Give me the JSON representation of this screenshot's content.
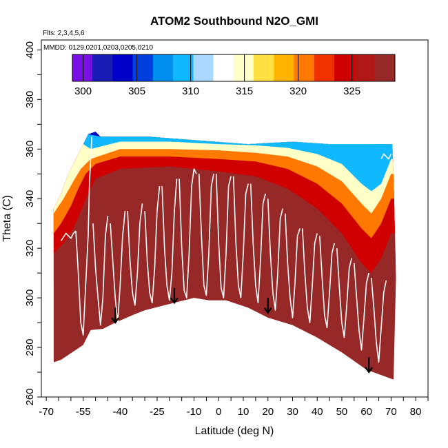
{
  "chart_data": {
    "type": "heatmap",
    "title": "ATOM2 Southbound N2O_GMI",
    "notes": [
      "Flts: 2,3,4,5,6",
      "MMDD: 0129,0201,0203,0205,0210"
    ],
    "xlabel": "Latitude (deg N)",
    "ylabel": "Theta (C)",
    "xlim": [
      -72,
      85
    ],
    "ylim": [
      260,
      404
    ],
    "x_ticks": [
      -70,
      -55,
      -40,
      -25,
      -10,
      0,
      10,
      20,
      30,
      40,
      50,
      60,
      70,
      80
    ],
    "y_ticks": [
      260,
      280,
      300,
      320,
      340,
      360,
      380,
      400
    ],
    "colorbar": {
      "min": 299,
      "max": 329,
      "ticks": [
        300,
        305,
        310,
        315,
        320,
        325
      ],
      "colors": [
        "#7a10e6",
        "#1a1ab4",
        "#0000c8",
        "#0040e0",
        "#0090f0",
        "#10b8ff",
        "#a8d8ff",
        "#ffffff",
        "#ffffc8",
        "#ffe040",
        "#ffb400",
        "#ff7800",
        "#f03200",
        "#d00000",
        "#b01818",
        "#962828"
      ]
    },
    "domain_bounds": [
      [
        -67,
        274
      ],
      [
        -64,
        275
      ],
      [
        -55,
        281
      ],
      [
        -52,
        287
      ],
      [
        -47,
        287.5
      ],
      [
        -42,
        290
      ],
      [
        -35,
        293
      ],
      [
        -30,
        295
      ],
      [
        -22,
        297
      ],
      [
        -10,
        300
      ],
      [
        -4,
        299
      ],
      [
        3,
        299
      ],
      [
        12,
        296
      ],
      [
        20,
        292
      ],
      [
        30,
        289
      ],
      [
        40,
        284
      ],
      [
        50,
        278
      ],
      [
        60,
        271
      ],
      [
        71,
        267
      ],
      [
        72,
        308
      ],
      [
        71,
        350
      ],
      [
        70.5,
        362
      ],
      [
        63,
        362
      ],
      [
        57,
        362
      ],
      [
        45,
        362
      ],
      [
        30,
        363
      ],
      [
        12,
        362
      ],
      [
        -15,
        364
      ],
      [
        -28,
        365
      ],
      [
        -48,
        365
      ],
      [
        -50,
        367
      ],
      [
        -53,
        366
      ],
      [
        -57,
        358
      ],
      [
        -61,
        350
      ],
      [
        -64,
        342
      ],
      [
        -67,
        336
      ]
    ],
    "contours": [
      {
        "level": 304,
        "points": [
          [
            -53,
            366
          ],
          [
            -48,
            365
          ],
          [
            -28,
            365
          ],
          [
            -8,
            364.5
          ],
          [
            12,
            364
          ],
          [
            30,
            363.5
          ],
          [
            45,
            363
          ],
          [
            57,
            362.5
          ],
          [
            63,
            362
          ],
          [
            70,
            362
          ]
        ]
      },
      {
        "level": 310,
        "points": [
          [
            -55,
            362
          ],
          [
            -52,
            360
          ],
          [
            -40,
            363
          ],
          [
            -20,
            363
          ],
          [
            0,
            362
          ],
          [
            15,
            361.5
          ],
          [
            28,
            360.5
          ],
          [
            40,
            358
          ],
          [
            50,
            354
          ],
          [
            58,
            346
          ],
          [
            62,
            343
          ],
          [
            66,
            346
          ],
          [
            70,
            356
          ]
        ]
      },
      {
        "level": 315,
        "points": [
          [
            -67,
            334
          ],
          [
            -63,
            340
          ],
          [
            -59,
            347
          ],
          [
            -56,
            352
          ],
          [
            -52,
            356
          ],
          [
            -40,
            360
          ],
          [
            -20,
            360
          ],
          [
            0,
            359.5
          ],
          [
            15,
            358.5
          ],
          [
            28,
            357
          ],
          [
            40,
            353
          ],
          [
            50,
            347
          ],
          [
            58,
            338
          ],
          [
            62,
            334
          ],
          [
            66,
            340
          ],
          [
            70,
            350
          ]
        ]
      },
      {
        "level": 320,
        "points": [
          [
            -67,
            326
          ],
          [
            -64,
            330
          ],
          [
            -60,
            337
          ],
          [
            -57,
            344
          ],
          [
            -54,
            350
          ],
          [
            -50,
            354
          ],
          [
            -40,
            357
          ],
          [
            -20,
            357
          ],
          [
            0,
            356
          ],
          [
            15,
            355
          ],
          [
            28,
            352
          ],
          [
            40,
            346
          ],
          [
            50,
            338
          ],
          [
            58,
            328
          ],
          [
            62,
            324
          ],
          [
            66,
            330
          ],
          [
            70,
            340
          ]
        ]
      },
      {
        "level": 325,
        "points": [
          [
            -67,
            318
          ],
          [
            -63,
            322
          ],
          [
            -59,
            328
          ],
          [
            -56,
            335
          ],
          [
            -53,
            342
          ],
          [
            -50,
            348
          ],
          [
            -40,
            352
          ],
          [
            -20,
            353
          ],
          [
            0,
            351
          ],
          [
            15,
            349
          ],
          [
            28,
            344
          ],
          [
            40,
            336
          ],
          [
            50,
            326
          ],
          [
            58,
            314
          ],
          [
            62,
            310
          ],
          [
            66,
            316
          ],
          [
            70,
            326
          ]
        ]
      },
      {
        "level": 328,
        "points": [
          [
            -67,
            306
          ],
          [
            -63,
            312
          ],
          [
            -59,
            320
          ],
          [
            -56,
            326
          ],
          [
            -53,
            334
          ],
          [
            -50,
            340
          ],
          [
            -40,
            346
          ],
          [
            -20,
            348
          ],
          [
            0,
            346
          ],
          [
            15,
            342
          ],
          [
            28,
            334
          ],
          [
            40,
            322
          ],
          [
            50,
            310
          ],
          [
            58,
            298
          ],
          [
            62,
            294
          ],
          [
            66,
            300
          ],
          [
            70,
            312
          ]
        ]
      }
    ],
    "flight_tracks": [
      [
        [
          -64,
          323
        ],
        [
          -62,
          326
        ],
        [
          -60,
          324
        ],
        [
          -59,
          326
        ],
        [
          -58,
          327
        ]
      ],
      [
        [
          -58,
          327
        ],
        [
          -57,
          310
        ],
        [
          -56,
          290
        ],
        [
          -55,
          285
        ],
        [
          -54,
          305
        ],
        [
          -53,
          325
        ],
        [
          -52.5,
          345
        ],
        [
          -52,
          356
        ],
        [
          -51.5,
          365
        ]
      ],
      [
        [
          -51,
          330
        ],
        [
          -50,
          312
        ],
        [
          -49,
          300
        ],
        [
          -48,
          289
        ],
        [
          -47,
          300
        ],
        [
          -46,
          325
        ],
        [
          -45,
          333
        ]
      ],
      [
        [
          -44,
          330
        ],
        [
          -43,
          315
        ],
        [
          -42,
          300
        ],
        [
          -41,
          290
        ],
        [
          -40,
          305
        ],
        [
          -39,
          325
        ],
        [
          -38,
          335
        ]
      ],
      [
        [
          -37,
          335
        ],
        [
          -36,
          315
        ],
        [
          -35,
          302
        ],
        [
          -34,
          297
        ],
        [
          -33,
          310
        ],
        [
          -32,
          330
        ],
        [
          -31,
          338
        ]
      ],
      [
        [
          -30,
          335
        ],
        [
          -29,
          315
        ],
        [
          -28,
          302
        ],
        [
          -27,
          298
        ],
        [
          -26,
          312
        ],
        [
          -25,
          335
        ],
        [
          -24,
          345
        ]
      ],
      [
        [
          -23,
          345
        ],
        [
          -22,
          320
        ],
        [
          -21,
          305
        ],
        [
          -20,
          299
        ],
        [
          -19,
          310
        ],
        [
          -18,
          335
        ],
        [
          -17,
          348
        ]
      ],
      [
        [
          -16,
          348
        ],
        [
          -15,
          320
        ],
        [
          -14,
          303
        ],
        [
          -13,
          300
        ],
        [
          -12,
          318
        ],
        [
          -11,
          345
        ],
        [
          -10,
          352
        ],
        [
          -9,
          350
        ]
      ],
      [
        [
          -8,
          350
        ],
        [
          -7,
          325
        ],
        [
          -6,
          305
        ],
        [
          -5,
          301
        ],
        [
          -4,
          318
        ],
        [
          -3,
          345
        ],
        [
          -2,
          350
        ]
      ],
      [
        [
          -1,
          350
        ],
        [
          0,
          322
        ],
        [
          1,
          304
        ],
        [
          2,
          300
        ],
        [
          3,
          318
        ],
        [
          4,
          345
        ],
        [
          5,
          349
        ]
      ],
      [
        [
          6,
          349
        ],
        [
          7,
          322
        ],
        [
          8,
          305
        ],
        [
          9,
          300
        ],
        [
          10,
          318
        ],
        [
          11,
          342
        ],
        [
          12,
          346
        ]
      ],
      [
        [
          13,
          346
        ],
        [
          14,
          322
        ],
        [
          15,
          305
        ],
        [
          16,
          298
        ],
        [
          17,
          315
        ],
        [
          18,
          338
        ],
        [
          19,
          342
        ]
      ],
      [
        [
          20,
          340
        ],
        [
          21,
          318
        ],
        [
          22,
          302
        ],
        [
          23,
          295
        ],
        [
          24,
          310
        ],
        [
          25,
          332
        ],
        [
          26,
          336
        ]
      ],
      [
        [
          27,
          334
        ],
        [
          28,
          314
        ],
        [
          29,
          300
        ],
        [
          30,
          292
        ],
        [
          31,
          306
        ],
        [
          32,
          325
        ],
        [
          33,
          328
        ]
      ],
      [
        [
          34,
          328
        ],
        [
          35,
          310
        ],
        [
          36,
          296
        ],
        [
          37,
          290
        ],
        [
          38,
          305
        ],
        [
          39,
          322
        ],
        [
          40,
          326
        ]
      ],
      [
        [
          41,
          325
        ],
        [
          42,
          308
        ],
        [
          43,
          293
        ],
        [
          44,
          288
        ],
        [
          45,
          302
        ],
        [
          46,
          318
        ],
        [
          47,
          322
        ]
      ],
      [
        [
          48,
          320
        ],
        [
          49,
          304
        ],
        [
          50,
          290
        ],
        [
          51,
          284
        ],
        [
          52,
          297
        ],
        [
          53,
          312
        ],
        [
          54,
          316
        ]
      ],
      [
        [
          55,
          314
        ],
        [
          56,
          300
        ],
        [
          57,
          287
        ],
        [
          58,
          279
        ],
        [
          59,
          292
        ],
        [
          60,
          306
        ],
        [
          61,
          310
        ]
      ],
      [
        [
          62,
          308
        ],
        [
          63,
          296
        ],
        [
          64,
          282
        ],
        [
          65,
          274
        ],
        [
          66,
          288
        ],
        [
          67,
          302
        ],
        [
          68,
          307
        ]
      ],
      [
        [
          66,
          356
        ],
        [
          67,
          358
        ],
        [
          68,
          357
        ],
        [
          69,
          356
        ],
        [
          70,
          358
        ]
      ]
    ],
    "arrows": [
      {
        "lat": -42,
        "theta_top": 296,
        "theta_tip": 290
      },
      {
        "lat": -18,
        "theta_top": 304,
        "theta_tip": 298
      },
      {
        "lat": 20,
        "theta_top": 300,
        "theta_tip": 294
      },
      {
        "lat": 61,
        "theta_top": 276,
        "theta_tip": 270
      }
    ]
  }
}
